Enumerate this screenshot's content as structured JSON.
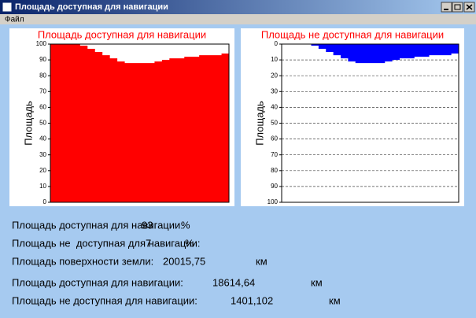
{
  "window": {
    "title": "Площадь доступная для навигации"
  },
  "menu": [
    "Файл"
  ],
  "charts": [
    {
      "type": "area",
      "title": "Площадь доступная для навигации",
      "y_label": "Площадь",
      "color": "#ff0000",
      "inverted": false,
      "grid": false,
      "ylim": [
        0,
        100
      ],
      "yticks": [
        0,
        10,
        20,
        30,
        40,
        50,
        60,
        70,
        80,
        90,
        100
      ],
      "values": [
        100,
        100,
        100,
        100,
        99,
        97,
        95,
        93,
        91,
        89,
        88,
        88,
        88,
        88,
        89,
        90,
        91,
        91,
        92,
        92,
        93,
        93,
        93,
        94
      ]
    },
    {
      "type": "area",
      "title": "Площадь не доступная для навигации",
      "y_label": "Площадь",
      "color": "#0000ff",
      "inverted": true,
      "grid": true,
      "ylim": [
        0,
        100
      ],
      "yticks": [
        0,
        10,
        20,
        30,
        40,
        50,
        60,
        70,
        80,
        90,
        100
      ],
      "values": [
        0,
        0,
        0,
        0,
        1,
        3,
        5,
        7,
        9,
        11,
        12,
        12,
        12,
        12,
        11,
        10,
        9,
        9,
        8,
        8,
        7,
        7,
        7,
        6
      ]
    }
  ],
  "stats": [
    [
      "Площадь доступная для навигации:",
      "93",
      "%"
    ],
    [
      "Площадь не  доступная для навигации:",
      "7",
      "%"
    ],
    [
      "Площадь поверхности земли:",
      "20015,75",
      "км"
    ],
    [
      "Площадь доступная для навигации:",
      "18614,64",
      "км"
    ],
    [
      "Площадь не доступная для навигации:",
      "1401,102",
      "км"
    ]
  ]
}
